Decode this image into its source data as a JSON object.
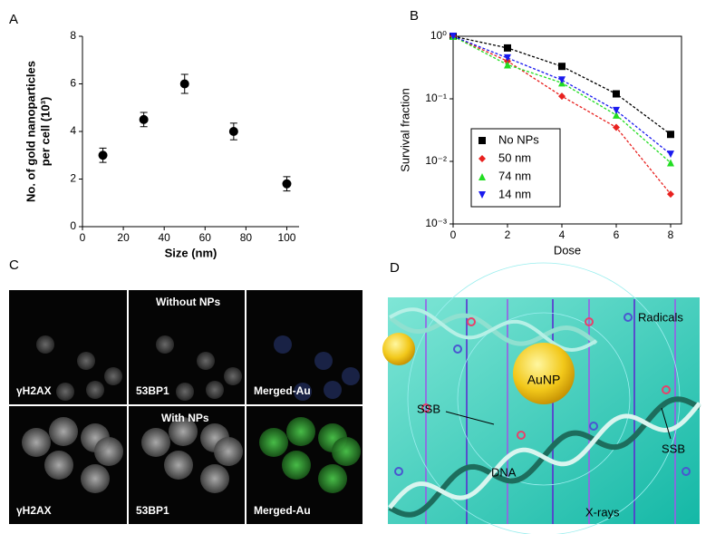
{
  "chart_data": [
    {
      "type": "scatter",
      "panel": "A",
      "xlabel": "Size (nm)",
      "ylabel": [
        "No. of gold nanoparticles",
        "per cell (10³)"
      ],
      "x": [
        10,
        30,
        50,
        74,
        100
      ],
      "values": [
        3.0,
        4.5,
        6.0,
        4.0,
        1.8
      ],
      "errors": [
        0.3,
        0.3,
        0.4,
        0.35,
        0.3
      ],
      "color": "#000000",
      "xlim": [
        0,
        106
      ],
      "xticks": [
        0,
        20,
        40,
        60,
        80,
        100
      ],
      "ylim": [
        0,
        8
      ],
      "yticks": [
        0,
        2,
        4,
        6,
        8
      ]
    },
    {
      "type": "line",
      "panel": "B",
      "log_y": true,
      "legend": "lower left",
      "xlabel": "Dose",
      "ylabel": "Survival fraction",
      "x": [
        0,
        2,
        4,
        6,
        8
      ],
      "series": [
        {
          "name": "No NPs",
          "color": "#000000",
          "marker": "square",
          "values": [
            1,
            0.65,
            0.33,
            0.12,
            0.027
          ]
        },
        {
          "name": "50 nm",
          "color": "#e8211f",
          "marker": "diamond",
          "values": [
            1,
            0.4,
            0.11,
            0.035,
            0.003
          ]
        },
        {
          "name": "74 nm",
          "color": "#22dd22",
          "marker": "triangle-up",
          "values": [
            1,
            0.35,
            0.18,
            0.055,
            0.0095
          ]
        },
        {
          "name": "14 nm",
          "color": "#1a1aee",
          "marker": "triangle-down",
          "values": [
            1,
            0.45,
            0.2,
            0.065,
            0.013
          ]
        }
      ],
      "xlim": [
        0,
        8.4
      ],
      "xticks": [
        0,
        2,
        4,
        6,
        8
      ],
      "ylim": [
        0.001,
        1
      ],
      "yticks": [
        {
          "value": 1,
          "label": "10⁰"
        },
        {
          "value": 0.1,
          "label": "10⁻¹"
        },
        {
          "value": 0.01,
          "label": "10⁻²"
        },
        {
          "value": 0.001,
          "label": "10⁻³"
        }
      ]
    }
  ],
  "panel_c": {
    "label": "C",
    "row_labels": [
      "Without NPs",
      "With NPs"
    ],
    "channels": [
      "γH2AX",
      "53BP1",
      "Merged-Au"
    ]
  },
  "panel_d": {
    "label": "D",
    "radicals": "Radicals",
    "aunp": "AuNP",
    "ssb": "SSB",
    "dna": "DNA",
    "xrays": "X-rays"
  }
}
